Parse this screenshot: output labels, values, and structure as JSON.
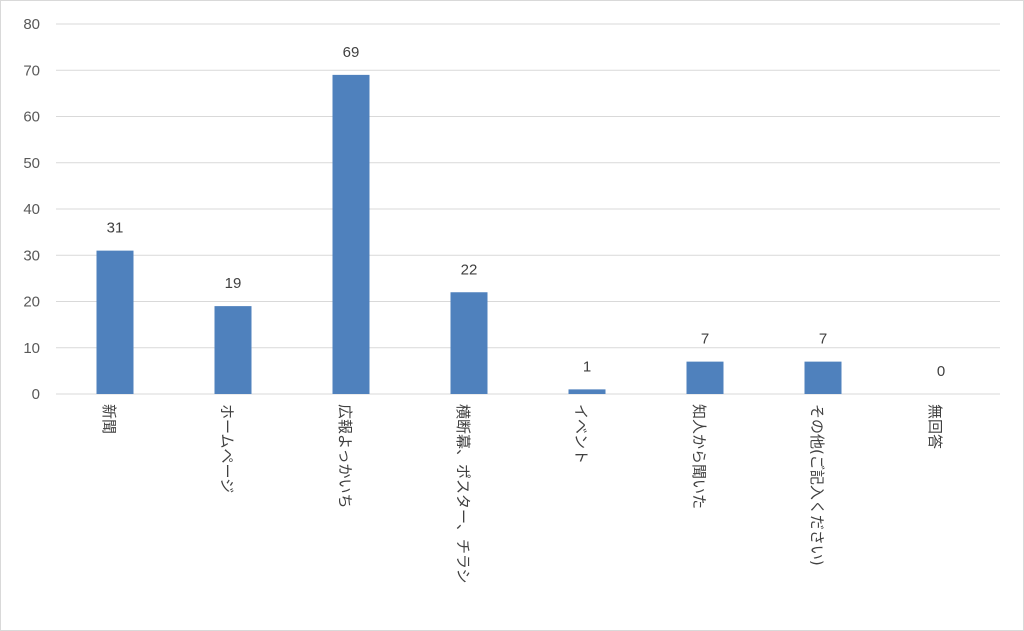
{
  "chart_data": {
    "type": "bar",
    "categories": [
      "新聞",
      "ホームページ",
      "広報よっかいち",
      "横断幕、ポスター、チラシ",
      "イベント",
      "知人から聞いた",
      "その他(ご記入ください)",
      "無回答"
    ],
    "values": [
      31,
      19,
      69,
      22,
      1,
      7,
      7,
      0
    ],
    "data_labels": [
      "31",
      "19",
      "69",
      "22",
      "1",
      "7",
      "7",
      "0"
    ],
    "ylim": [
      0,
      80
    ],
    "yticks": [
      0,
      10,
      20,
      30,
      40,
      50,
      60,
      70,
      80
    ],
    "ytick_labels": [
      "0",
      "10",
      "20",
      "30",
      "40",
      "50",
      "60",
      "70",
      "80"
    ],
    "grid": true,
    "legend": "none",
    "bar_color": "#4f81bd",
    "grid_color": "#d9d9d9"
  }
}
